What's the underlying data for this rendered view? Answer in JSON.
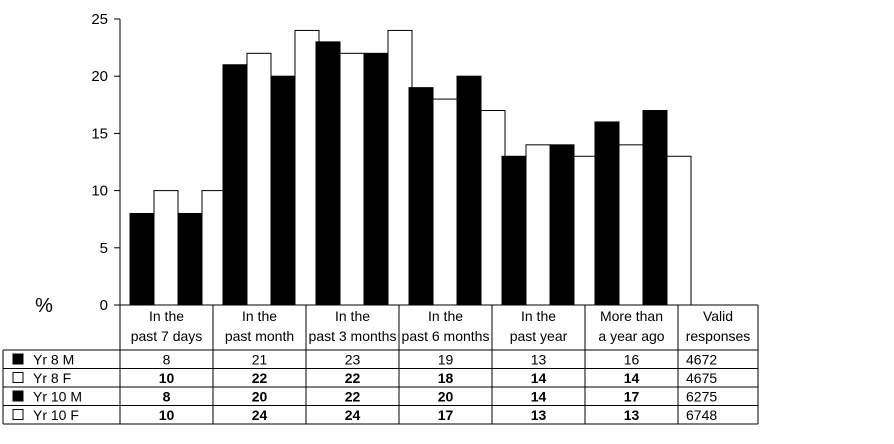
{
  "chart_data": {
    "type": "bar",
    "y_unit": "%",
    "ylim": [
      0,
      25
    ],
    "yticks": [
      0,
      5,
      10,
      15,
      20,
      25
    ],
    "grid": false,
    "legend": "data-table-below",
    "categories": [
      [
        "In the",
        "past 7 days"
      ],
      [
        "In the",
        "past month"
      ],
      [
        "In the",
        "past 3 months"
      ],
      [
        "In the",
        "past 6 months"
      ],
      [
        "In the",
        "past year"
      ],
      [
        "More than",
        "a year ago"
      ]
    ],
    "valid_header": [
      "Valid",
      "responses"
    ],
    "series": [
      {
        "name": "Yr 8 M",
        "values": [
          8,
          21,
          23,
          19,
          13,
          16
        ],
        "valid": "4672",
        "fill": "#000000",
        "bold": false
      },
      {
        "name": "Yr 8 F",
        "values": [
          10,
          22,
          22,
          18,
          14,
          14
        ],
        "valid": "4675",
        "fill": "#ffffff",
        "bold": true
      },
      {
        "name": "Yr 10 M",
        "values": [
          8,
          20,
          22,
          20,
          14,
          17
        ],
        "valid": "6275",
        "fill": "#000000",
        "bold": true
      },
      {
        "name": "Yr 10 F",
        "values": [
          10,
          24,
          24,
          17,
          13,
          13
        ],
        "valid": "6748",
        "fill": "#ffffff",
        "bold": true
      }
    ]
  }
}
